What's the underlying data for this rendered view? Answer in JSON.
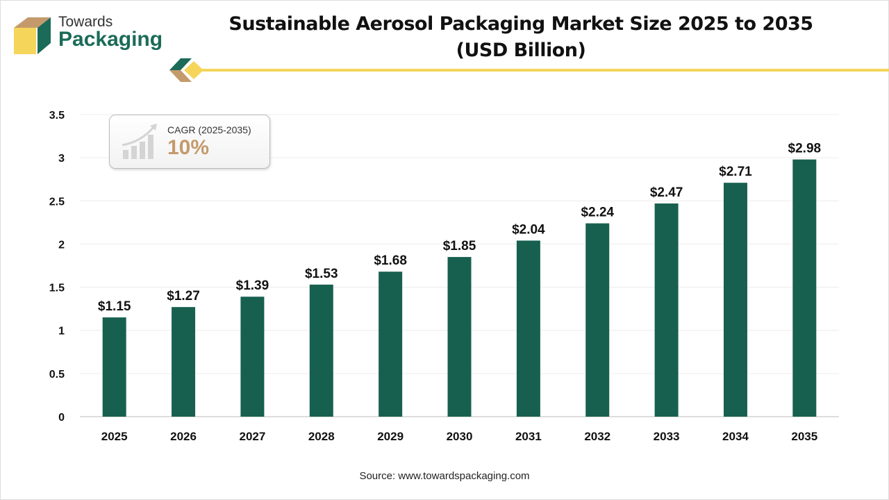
{
  "brand": {
    "line1": "Towards",
    "line2": "Packaging"
  },
  "colors": {
    "bar": "#17604f",
    "accent_gold": "#c49a6c",
    "yellow": "#f5d55a",
    "brand_green": "#1b6b58"
  },
  "cagr": {
    "label": "CAGR (2025-2035)",
    "value": "10%",
    "icon": "growth-chart-icon"
  },
  "source": "Source: www.towardspackaging.com",
  "chart_data": {
    "type": "bar",
    "title": "Sustainable Aerosol Packaging Market Size 2025 to 2035",
    "subtitle": "(USD Billion)",
    "xlabel": "",
    "ylabel": "",
    "categories": [
      "2025",
      "2026",
      "2027",
      "2028",
      "2029",
      "2030",
      "2031",
      "2032",
      "2033",
      "2034",
      "2035"
    ],
    "values": [
      1.15,
      1.27,
      1.39,
      1.53,
      1.68,
      1.85,
      2.04,
      2.24,
      2.47,
      2.71,
      2.98
    ],
    "data_labels": [
      "$1.15",
      "$1.27",
      "$1.39",
      "$1.53",
      "$1.68",
      "$1.85",
      "$2.04",
      "$2.24",
      "$2.47",
      "$2.71",
      "$2.98"
    ],
    "ylim": [
      0,
      3.5
    ],
    "yticks": [
      "0",
      "0.5",
      "1",
      "1.5",
      "2",
      "2.5",
      "3",
      "3.5"
    ],
    "grid": true,
    "legend": "none"
  }
}
